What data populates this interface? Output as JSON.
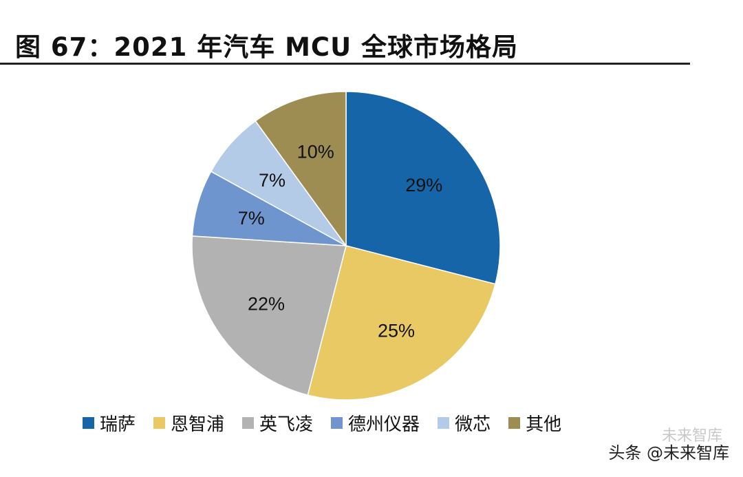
{
  "chart_data": {
    "type": "pie",
    "title": "图 67：2021 年汽车 MCU 全球市场格局",
    "categories": [
      "瑞萨",
      "恩智浦",
      "英飞凌",
      "德州仪器",
      "微芯",
      "其他"
    ],
    "values": [
      29,
      25,
      22,
      7,
      7,
      10
    ],
    "labels": [
      "29%",
      "25%",
      "22%",
      "7%",
      "7%",
      "10%"
    ],
    "colors": [
      "#1665a8",
      "#e8c964",
      "#b2b2b2",
      "#6f95cf",
      "#b4cbe8",
      "#9e8d52"
    ],
    "legend_position": "bottom"
  },
  "watermark": {
    "faint": "未来智库",
    "text": "头条 @未来智库"
  }
}
